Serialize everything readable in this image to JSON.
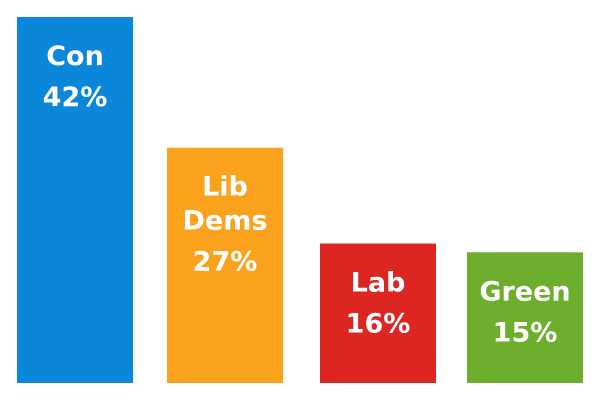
{
  "chart_data": {
    "type": "bar",
    "categories": [
      {
        "label_lines": [
          "Con"
        ],
        "value_label": "42%"
      },
      {
        "label_lines": [
          "Lib",
          "Dems"
        ],
        "value_label": "27%"
      },
      {
        "label_lines": [
          "Lab"
        ],
        "value_label": "16%"
      },
      {
        "label_lines": [
          "Green"
        ],
        "value_label": "15%"
      }
    ],
    "values": [
      42,
      27,
      16,
      15
    ],
    "colors": [
      "#0A87D9",
      "#FBA21C",
      "#DD2621",
      "#6DAE2C"
    ],
    "ylim": [
      0,
      42
    ],
    "grid": false,
    "legend": "none"
  }
}
